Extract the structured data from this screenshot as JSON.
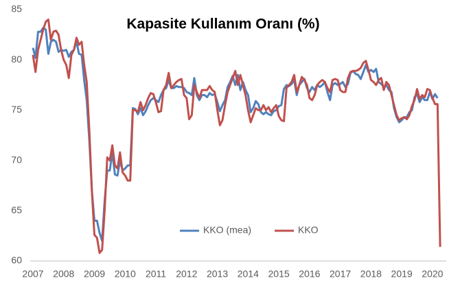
{
  "chart_data": {
    "type": "line",
    "title": "Kapasite Kullanım Oranı (%)",
    "categories": [
      "2007",
      null,
      null,
      null,
      null,
      null,
      null,
      null,
      null,
      null,
      null,
      null,
      "2008",
      null,
      null,
      null,
      null,
      null,
      null,
      null,
      null,
      null,
      null,
      null,
      "2009",
      null,
      null,
      null,
      null,
      null,
      null,
      null,
      null,
      null,
      null,
      null,
      "2010",
      null,
      null,
      null,
      null,
      null,
      null,
      null,
      null,
      null,
      null,
      null,
      "2011",
      null,
      null,
      null,
      null,
      null,
      null,
      null,
      null,
      null,
      null,
      null,
      "2012",
      null,
      null,
      null,
      null,
      null,
      null,
      null,
      null,
      null,
      null,
      null,
      "2013",
      null,
      null,
      null,
      null,
      null,
      null,
      null,
      null,
      null,
      null,
      null,
      "2014",
      null,
      null,
      null,
      null,
      null,
      null,
      null,
      null,
      null,
      null,
      null,
      "2015",
      null,
      null,
      null,
      null,
      null,
      null,
      null,
      null,
      null,
      null,
      null,
      "2016",
      null,
      null,
      null,
      null,
      null,
      null,
      null,
      null,
      null,
      null,
      null,
      "2017",
      null,
      null,
      null,
      null,
      null,
      null,
      null,
      null,
      null,
      null,
      null,
      "2018",
      null,
      null,
      null,
      null,
      null,
      null,
      null,
      null,
      null,
      null,
      null,
      "2019",
      null,
      null,
      null,
      null,
      null,
      null,
      null,
      null,
      null,
      null,
      null,
      "2020",
      null,
      null,
      null
    ],
    "series": [
      {
        "name": "KKO (mea)",
        "color": "#4f81bd",
        "values": [
          81.2,
          80.2,
          82.8,
          82.8,
          83.2,
          83,
          80.6,
          81.8,
          82,
          81.8,
          80.8,
          81,
          80.9,
          81,
          80.3,
          80.8,
          81,
          81.8,
          80.6,
          80.5,
          78,
          76,
          72,
          67,
          64,
          64,
          62.8,
          62,
          66,
          69,
          69,
          70.8,
          68.6,
          68.5,
          70,
          69,
          69.2,
          69.5,
          69.5,
          75.2,
          75.1,
          74.6,
          75.2,
          74.5,
          74.9,
          75.5,
          76,
          76.2,
          76,
          75.8,
          76.5,
          77,
          77.2,
          78,
          77.2,
          77.2,
          77.4,
          77.3,
          77.3,
          77.2,
          76.8,
          76.7,
          76.5,
          78.2,
          76.5,
          76,
          76.5,
          76.5,
          76.3,
          76.7,
          76.5,
          76.6,
          75.8,
          74.9,
          75.5,
          76,
          77.3,
          77.8,
          78.4,
          77.5,
          78.5,
          77,
          77.8,
          77,
          76.5,
          74.8,
          75.2,
          75.9,
          75.6,
          74.8,
          74.6,
          74.8,
          74.6,
          74.5,
          74.9,
          75,
          75.4,
          75.5,
          77.1,
          77.5,
          77.4,
          77.6,
          78,
          76.5,
          77.5,
          77.8,
          78.1,
          77.2,
          76.8,
          77.3,
          77,
          77.5,
          77.3,
          77.5,
          77.8,
          76.8,
          76,
          77.5,
          77.7,
          77.5,
          77.6,
          77.8,
          77.3,
          77.6,
          78.7,
          78.9,
          78.6,
          78.5,
          78.1,
          78.8,
          79.5,
          78.8,
          79,
          78.8,
          79.1,
          77.8,
          77.6,
          77.3,
          77.5,
          77,
          76.8,
          75.2,
          74.3,
          73.8,
          74,
          74.3,
          74.3,
          74.8,
          75,
          76.3,
          76.6,
          75.8,
          76.3,
          76,
          76,
          76.8,
          76.1,
          76.6,
          76.2,
          null
        ]
      },
      {
        "name": "KKO",
        "color": "#c0504d",
        "values": [
          80.5,
          78.8,
          81,
          82,
          83,
          83.8,
          84,
          82,
          82.8,
          82.9,
          82.5,
          81,
          80,
          79.5,
          78.2,
          80.5,
          81,
          82.2,
          81.5,
          81.8,
          79.5,
          77.8,
          73,
          67,
          62.6,
          62.3,
          60.8,
          61.1,
          65,
          70.3,
          70,
          71.5,
          69.5,
          69.2,
          70.8,
          68.8,
          68.5,
          68,
          68,
          75,
          75,
          74.8,
          75.8,
          75,
          75.5,
          76.2,
          76.7,
          76.6,
          75.8,
          74.8,
          74.9,
          77,
          77.5,
          78.7,
          77.2,
          77.5,
          77.8,
          78,
          78.1,
          76.5,
          76.2,
          74.1,
          74.5,
          77.5,
          76.8,
          76.2,
          77,
          77,
          77,
          77.4,
          77,
          76.8,
          75,
          73.5,
          74,
          75.5,
          76.8,
          77.5,
          78.2,
          78.9,
          77.5,
          78.5,
          77.5,
          76.5,
          75,
          73.8,
          74.5,
          75.2,
          75,
          75,
          75.5,
          75,
          75.3,
          74.8,
          75.2,
          75.5,
          74.4,
          74,
          73.9,
          77.2,
          77.5,
          77.8,
          78.5,
          76.8,
          77.5,
          78.3,
          78,
          77.5,
          76.2,
          76,
          76.5,
          77.5,
          77.8,
          78,
          77.8,
          77.2,
          76.8,
          78,
          78.1,
          78,
          77,
          76.8,
          76.8,
          78.2,
          78.8,
          78.9,
          78.9,
          79,
          79.2,
          79.7,
          79.9,
          79,
          78,
          77.8,
          77.5,
          78,
          78.2,
          77,
          77.8,
          77.5,
          76.5,
          75.5,
          74.5,
          74,
          74.2,
          74.3,
          74.1,
          74.5,
          75.4,
          76,
          77.1,
          76.1,
          76.5,
          76.3,
          77.1,
          77,
          76.2,
          75.6,
          75.6,
          61.4
        ]
      }
    ],
    "ylim": [
      60,
      85
    ],
    "yticks": [
      60,
      65,
      70,
      75,
      80,
      85
    ],
    "grid": false
  }
}
